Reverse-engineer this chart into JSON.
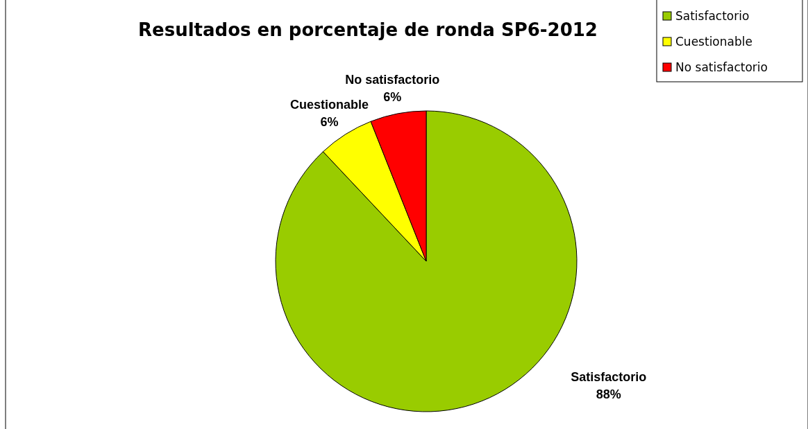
{
  "chart_data": {
    "type": "pie",
    "title": "Resultados en porcentaje de ronda SP6-2012",
    "categories": [
      "Satisfactorio",
      "Cuestionable",
      "No satisfactorio"
    ],
    "values": [
      88,
      6,
      6
    ],
    "colors": [
      "#99cc00",
      "#ffff00",
      "#ff0000"
    ],
    "value_labels": [
      "88%",
      "6%",
      "6%"
    ],
    "legend": "top right"
  }
}
